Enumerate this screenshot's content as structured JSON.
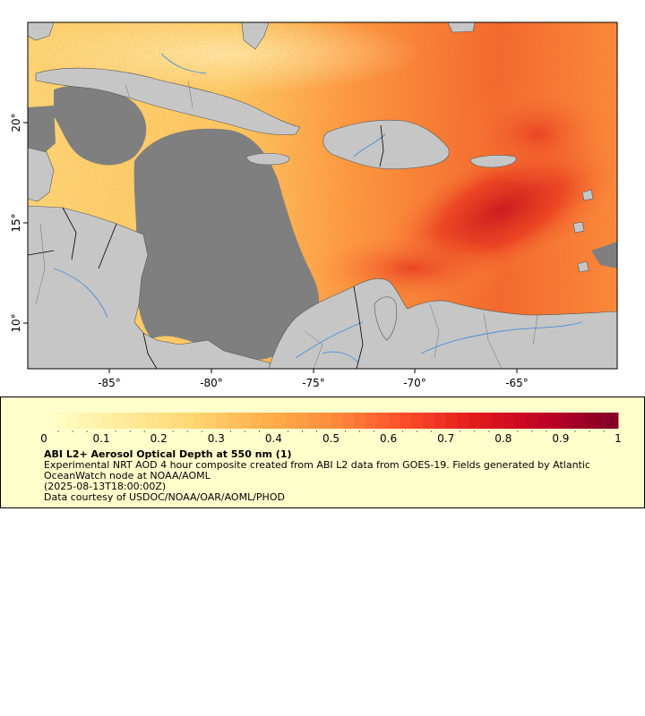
{
  "map": {
    "x_ticks": [
      "-85°",
      "-80°",
      "-75°",
      "-70°",
      "-65°"
    ],
    "y_ticks": [
      "20°",
      "15°",
      "10°"
    ],
    "colors": {
      "no_data_gray": "#7f7f7f",
      "land": "#c6c6c6",
      "rivers": "#4a8fd6",
      "borders": "#000000",
      "subborders": "#6e6e6e"
    }
  },
  "legend": {
    "colorbar": {
      "min": 0,
      "max": 1,
      "tick_labels": [
        "0",
        "0.1",
        "0.2",
        "0.3",
        "0.4",
        "0.5",
        "0.6",
        "0.7",
        "0.8",
        "0.9",
        "1"
      ],
      "palette": [
        "#ffffcc",
        "#ffeda0",
        "#fed976",
        "#feb24c",
        "#fd8d3c",
        "#fc4e2a",
        "#e31a1c",
        "#bd0026",
        "#800026"
      ]
    },
    "title": "ABI L2+ Aerosol Optical Depth at 550 nm (1)",
    "description": "Experimental NRT AOD 4 hour composite created from ABI L2 data from GOES-19. Fields generated by Atlantic OceanWatch node at NOAA/AOML",
    "date": "(2025-08-13T18:00:00Z)",
    "credit": "Data courtesy of USDOC/NOAA/OAR/AOML/PHOD"
  }
}
